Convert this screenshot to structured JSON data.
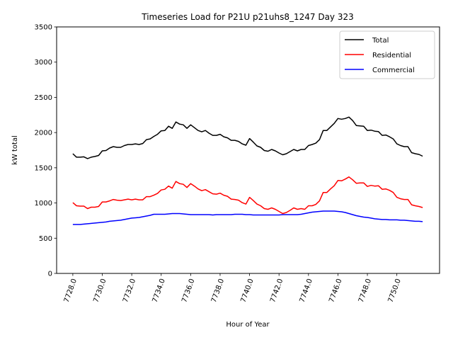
{
  "chart_data": {
    "type": "line",
    "title": "Timeseries Load for P21U p21uhs8_1247  Day 323",
    "xlabel": "Hour of Year",
    "ylabel": "kW total",
    "xlim": [
      7726.9,
      7752.9
    ],
    "ylim": [
      0,
      3500
    ],
    "x_ticks": [
      7728,
      7730,
      7732,
      7734,
      7736,
      7738,
      7740,
      7742,
      7744,
      7746,
      7748,
      7750
    ],
    "x_tick_labels": [
      "7728.0",
      "7730.0",
      "7732.0",
      "7734.0",
      "7736.0",
      "7738.0",
      "7740.0",
      "7742.0",
      "7744.0",
      "7746.0",
      "7748.0",
      "7750.0"
    ],
    "y_ticks": [
      0,
      500,
      1000,
      1500,
      2000,
      2500,
      3000,
      3500
    ],
    "y_tick_labels": [
      "0",
      "500",
      "1000",
      "1500",
      "2000",
      "2500",
      "3000",
      "3500"
    ],
    "x": [
      7728.0,
      7728.25,
      7728.5,
      7728.75,
      7729.0,
      7729.25,
      7729.5,
      7729.75,
      7730.0,
      7730.25,
      7730.5,
      7730.75,
      7731.0,
      7731.25,
      7731.5,
      7731.75,
      7732.0,
      7732.25,
      7732.5,
      7732.75,
      7733.0,
      7733.25,
      7733.5,
      7733.75,
      7734.0,
      7734.25,
      7734.5,
      7734.75,
      7735.0,
      7735.25,
      7735.5,
      7735.75,
      7736.0,
      7736.25,
      7736.5,
      7736.75,
      7737.0,
      7737.25,
      7737.5,
      7737.75,
      7738.0,
      7738.25,
      7738.5,
      7738.75,
      7739.0,
      7739.25,
      7739.5,
      7739.75,
      7740.0,
      7740.25,
      7740.5,
      7740.75,
      7741.0,
      7741.25,
      7741.5,
      7741.75,
      7742.0,
      7742.25,
      7742.5,
      7742.75,
      7743.0,
      7743.25,
      7743.5,
      7743.75,
      7744.0,
      7744.25,
      7744.5,
      7744.75,
      7745.0,
      7745.25,
      7745.5,
      7745.75,
      7746.0,
      7746.25,
      7746.5,
      7746.75,
      7747.0,
      7747.25,
      7747.5,
      7747.75,
      7748.0,
      7748.25,
      7748.5,
      7748.75,
      7749.0,
      7749.25,
      7749.5,
      7749.75,
      7750.0,
      7750.25,
      7750.5,
      7750.75,
      7751.0,
      7751.25,
      7751.5,
      7751.75
    ],
    "series": [
      {
        "name": "Total",
        "color": "#000000",
        "values": [
          1700,
          1650,
          1650,
          1655,
          1630,
          1650,
          1660,
          1675,
          1740,
          1745,
          1780,
          1800,
          1790,
          1790,
          1815,
          1830,
          1830,
          1840,
          1830,
          1845,
          1900,
          1910,
          1945,
          1975,
          2025,
          2030,
          2090,
          2060,
          2150,
          2120,
          2110,
          2060,
          2110,
          2070,
          2030,
          2010,
          2030,
          1990,
          1960,
          1960,
          1975,
          1940,
          1925,
          1890,
          1890,
          1875,
          1840,
          1820,
          1915,
          1865,
          1810,
          1790,
          1745,
          1735,
          1760,
          1740,
          1710,
          1685,
          1700,
          1730,
          1760,
          1740,
          1760,
          1760,
          1815,
          1830,
          1850,
          1900,
          2030,
          2030,
          2080,
          2130,
          2200,
          2190,
          2200,
          2220,
          2170,
          2100,
          2095,
          2090,
          2030,
          2035,
          2020,
          2015,
          1960,
          1965,
          1940,
          1910,
          1840,
          1815,
          1800,
          1800,
          1715,
          1700,
          1690,
          1665
        ]
      },
      {
        "name": "Residential",
        "color": "#ff0000",
        "values": [
          1005,
          960,
          955,
          955,
          920,
          940,
          940,
          950,
          1015,
          1015,
          1030,
          1050,
          1040,
          1035,
          1045,
          1055,
          1045,
          1055,
          1045,
          1045,
          1090,
          1090,
          1110,
          1135,
          1185,
          1195,
          1240,
          1210,
          1305,
          1275,
          1265,
          1220,
          1275,
          1240,
          1200,
          1175,
          1190,
          1160,
          1130,
          1125,
          1140,
          1110,
          1095,
          1055,
          1050,
          1040,
          1005,
          985,
          1080,
          1035,
          985,
          960,
          920,
          910,
          930,
          910,
          880,
          850,
          865,
          895,
          930,
          910,
          920,
          910,
          960,
          960,
          980,
          1030,
          1150,
          1150,
          1200,
          1245,
          1320,
          1315,
          1340,
          1370,
          1330,
          1280,
          1285,
          1285,
          1235,
          1250,
          1240,
          1245,
          1195,
          1200,
          1180,
          1150,
          1080,
          1060,
          1050,
          1050,
          975,
          960,
          950,
          935
        ]
      },
      {
        "name": "Commercial",
        "color": "#0000ff",
        "values": [
          695,
          695,
          695,
          700,
          705,
          710,
          715,
          720,
          725,
          730,
          740,
          745,
          750,
          755,
          765,
          775,
          785,
          790,
          795,
          805,
          815,
          825,
          840,
          840,
          840,
          840,
          845,
          850,
          850,
          850,
          845,
          840,
          835,
          835,
          835,
          835,
          835,
          835,
          830,
          835,
          835,
          835,
          835,
          835,
          840,
          840,
          840,
          835,
          835,
          830,
          830,
          830,
          830,
          830,
          830,
          830,
          830,
          835,
          835,
          835,
          835,
          835,
          840,
          850,
          860,
          870,
          875,
          880,
          885,
          885,
          885,
          885,
          880,
          875,
          865,
          850,
          835,
          820,
          810,
          800,
          795,
          785,
          775,
          770,
          765,
          765,
          760,
          760,
          760,
          755,
          755,
          750,
          745,
          740,
          740,
          735
        ]
      }
    ],
    "legend": [
      "Total",
      "Residential",
      "Commercial"
    ],
    "legend_position": "top-right",
    "grid": false
  }
}
